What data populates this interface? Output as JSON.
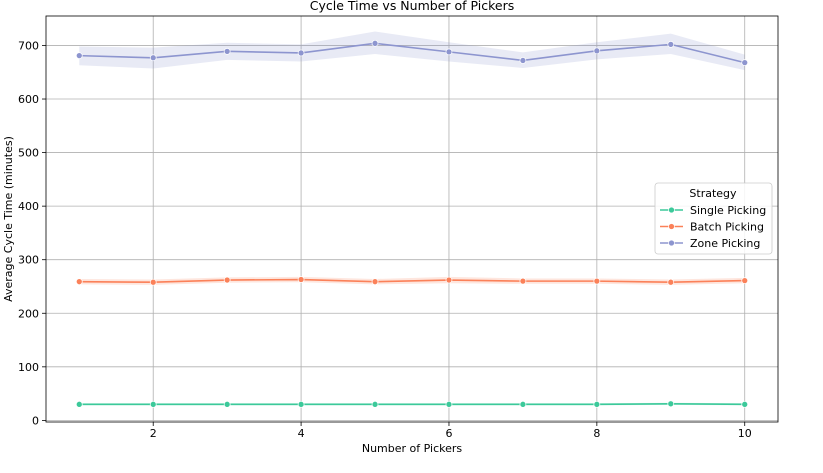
{
  "chart_data": {
    "type": "line",
    "title": "Cycle Time vs Number of Pickers",
    "xlabel": "Number of Pickers",
    "ylabel": "Average Cycle Time (minutes)",
    "xlim": [
      0.55,
      10.45
    ],
    "ylim": [
      -3,
      755
    ],
    "x_ticks": [
      2,
      4,
      6,
      8,
      10
    ],
    "y_ticks": [
      0,
      100,
      200,
      300,
      400,
      500,
      600,
      700
    ],
    "grid": true,
    "legend": {
      "title": "Strategy",
      "placement": "center-right"
    },
    "x": [
      1,
      2,
      3,
      4,
      5,
      6,
      7,
      8,
      9,
      10
    ],
    "series": [
      {
        "name": "Single Picking",
        "color": "#3cc99a",
        "values": [
          30,
          30,
          30,
          30,
          30,
          30,
          30,
          30,
          31,
          30
        ],
        "ci_low": [
          28,
          28,
          28,
          28,
          28,
          28,
          28,
          28,
          29,
          28
        ],
        "ci_high": [
          32,
          32,
          32,
          32,
          32,
          32,
          32,
          32,
          33,
          32
        ]
      },
      {
        "name": "Batch Picking",
        "color": "#fb8159",
        "values": [
          259,
          258,
          262,
          263,
          259,
          262,
          260,
          260,
          258,
          261
        ],
        "ci_low": [
          254,
          253,
          257,
          258,
          254,
          256,
          255,
          255,
          253,
          256
        ],
        "ci_high": [
          264,
          263,
          267,
          268,
          264,
          268,
          265,
          265,
          263,
          266
        ]
      },
      {
        "name": "Zone Picking",
        "color": "#8d95cf",
        "values": [
          681,
          677,
          689,
          686,
          704,
          688,
          672,
          690,
          702,
          668
        ],
        "ci_low": [
          663,
          657,
          673,
          670,
          684,
          670,
          658,
          674,
          684,
          654
        ],
        "ci_high": [
          698,
          696,
          705,
          702,
          726,
          706,
          687,
          706,
          722,
          683
        ]
      }
    ]
  }
}
